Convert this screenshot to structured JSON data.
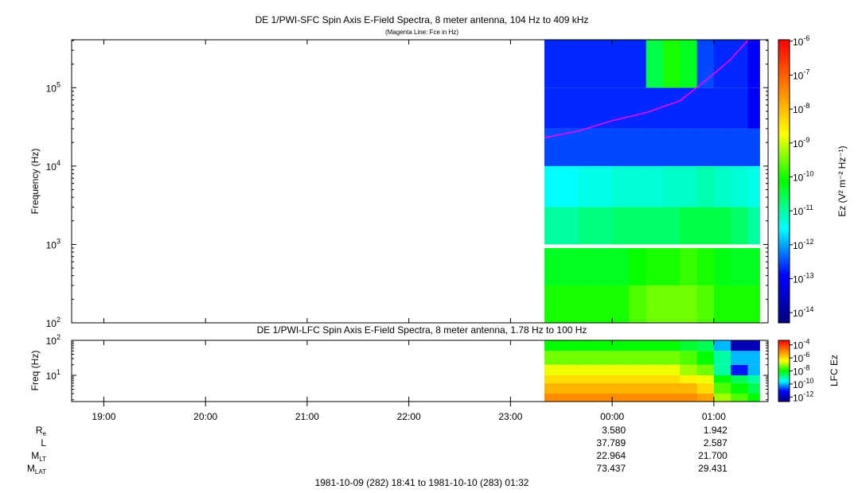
{
  "chart_data": [
    {
      "type": "spectrogram",
      "title": "DE 1/PWI-SFC  Spin Axis E-Field Spectra, 8 meter antenna, 104 Hz to 409 kHz",
      "subtitle": "(Magenta Line: Fce in Hz)",
      "ylabel": "Frequency (Hz)",
      "ylog": true,
      "ylim": [
        100,
        409000
      ],
      "yticks": [
        {
          "value": 100,
          "label": "10",
          "exponent": "2"
        },
        {
          "value": 1000,
          "label": "10",
          "exponent": "3"
        },
        {
          "value": 10000,
          "label": "10",
          "exponent": "4"
        },
        {
          "value": 100000,
          "label": "10",
          "exponent": "5"
        }
      ],
      "xlim": [
        "1981-10-09 18:41",
        "1981-10-10 01:32"
      ],
      "x_edges": [
        "1981-10-09 23:20",
        "1981-10-09 23:30",
        "1981-10-09 23:40",
        "1981-10-09 23:50",
        "1981-10-10 00:00",
        "1981-10-10 00:10",
        "1981-10-10 00:20",
        "1981-10-10 00:30",
        "1981-10-10 00:40",
        "1981-10-10 00:50",
        "1981-10-10 01:00",
        "1981-10-10 01:10",
        "1981-10-10 01:20",
        "1981-10-10 01:27"
      ],
      "y_bins": [
        [
          100,
          300
        ],
        [
          300,
          900
        ],
        [
          1000,
          3000
        ],
        [
          3000,
          10000
        ],
        [
          10000,
          30000
        ],
        [
          30000,
          100000
        ],
        [
          100000,
          409000
        ]
      ],
      "z": [
        [
          1e-10,
          1e-10,
          1e-10,
          1e-10,
          1e-10,
          2e-10,
          3e-10,
          3e-10,
          3e-10,
          2e-10,
          1e-10,
          1e-10,
          1e-10
        ],
        [
          5e-11,
          5e-11,
          5e-11,
          5e-11,
          5e-11,
          8e-11,
          1e-10,
          1e-10,
          1.5e-10,
          1e-10,
          6e-11,
          5e-11,
          5e-11
        ],
        [
          1e-11,
          1e-11,
          1.5e-11,
          1.5e-11,
          2e-11,
          2e-11,
          2e-11,
          2e-11,
          3e-11,
          3e-11,
          3e-11,
          2e-11,
          1e-11
        ],
        [
          3e-12,
          3e-12,
          4e-12,
          4e-12,
          5e-12,
          5e-12,
          5e-12,
          6e-12,
          6e-12,
          8e-12,
          6e-12,
          5e-12,
          4e-12
        ],
        [
          3e-13,
          3e-13,
          3e-13,
          3e-13,
          3e-13,
          3e-13,
          3e-13,
          3e-13,
          3e-13,
          3e-13,
          3e-13,
          3e-13,
          3e-13
        ],
        [
          2e-13,
          2e-13,
          2e-13,
          2e-13,
          2e-13,
          2e-13,
          2e-13,
          2e-13,
          2e-13,
          2e-13,
          2e-13,
          2e-13,
          1e-13
        ],
        [
          2e-13,
          2e-13,
          2e-13,
          2e-13,
          2e-13,
          2e-13,
          3e-11,
          1e-10,
          5e-11,
          3e-13,
          2e-13,
          2e-13,
          1e-13
        ]
      ],
      "overlay": {
        "color": "#ff00ff",
        "x": [
          "1981-10-09 23:20",
          "1981-10-09 23:40",
          "1981-10-10 00:00",
          "1981-10-10 00:20",
          "1981-10-10 00:40",
          "1981-10-10 01:00",
          "1981-10-10 01:10",
          "1981-10-10 01:20"
        ],
        "values": [
          23000,
          28000,
          38000,
          48000,
          68000,
          150000,
          230000,
          400000
        ]
      },
      "colorbar": {
        "label": "Ez (V² m⁻² Hz⁻¹)",
        "zlog": true,
        "zlim": [
          5e-15,
          1.1e-06
        ],
        "zticks": [
          {
            "value": 1e-06,
            "label": "10",
            "exponent": "-6"
          },
          {
            "value": 1e-07,
            "label": "10",
            "exponent": "-7"
          },
          {
            "value": 1e-08,
            "label": "10",
            "exponent": "-8"
          },
          {
            "value": 1e-09,
            "label": "10",
            "exponent": "-9"
          },
          {
            "value": 1e-10,
            "label": "10",
            "exponent": "-10"
          },
          {
            "value": 1e-11,
            "label": "10",
            "exponent": "-11"
          },
          {
            "value": 1e-12,
            "label": "10",
            "exponent": "-12"
          },
          {
            "value": 1e-13,
            "label": "10",
            "exponent": "-13"
          },
          {
            "value": 1e-14,
            "label": "10",
            "exponent": "-14"
          }
        ],
        "colormap": [
          "#00007f",
          "#0000ff",
          "#00ffff",
          "#00ff00",
          "#ffff00",
          "#ff7f00",
          "#ff0000"
        ]
      }
    },
    {
      "type": "spectrogram",
      "title": "DE 1/PWI-LFC  Spin Axis E-Field Spectra, 8 meter antenna, 1.78 Hz to 100 Hz",
      "ylabel": "Freq (Hz)",
      "ylog": true,
      "ylim": [
        1.78,
        100
      ],
      "yticks": [
        {
          "value": 10,
          "label": "10",
          "exponent": "1"
        },
        {
          "value": 100,
          "label": "10",
          "exponent": "2"
        }
      ],
      "xlim": [
        "1981-10-09 18:41",
        "1981-10-10 01:32"
      ],
      "xticks": [
        {
          "value": "1981-10-09 19:00",
          "label": "19:00"
        },
        {
          "value": "1981-10-09 20:00",
          "label": "20:00"
        },
        {
          "value": "1981-10-09 21:00",
          "label": "21:00"
        },
        {
          "value": "1981-10-09 22:00",
          "label": "22:00"
        },
        {
          "value": "1981-10-09 23:00",
          "label": "23:00"
        },
        {
          "value": "1981-10-10 00:00",
          "label": "00:00"
        },
        {
          "value": "1981-10-10 01:00",
          "label": "01:00"
        }
      ],
      "x_edges": [
        "1981-10-09 23:20",
        "1981-10-09 23:30",
        "1981-10-09 23:40",
        "1981-10-09 23:50",
        "1981-10-10 00:00",
        "1981-10-10 00:10",
        "1981-10-10 00:20",
        "1981-10-10 00:30",
        "1981-10-10 00:40",
        "1981-10-10 00:50",
        "1981-10-10 01:00",
        "1981-10-10 01:10",
        "1981-10-10 01:20",
        "1981-10-10 01:27"
      ],
      "y_bins": [
        [
          1.78,
          3
        ],
        [
          3,
          6
        ],
        [
          6,
          10
        ],
        [
          10,
          20
        ],
        [
          20,
          50
        ],
        [
          50,
          100
        ]
      ],
      "z": [
        [
          1e-05,
          1e-05,
          1e-05,
          1e-05,
          1e-05,
          1e-05,
          1e-05,
          1e-05,
          1e-05,
          5e-06,
          1e-07,
          3e-08,
          1e-08
        ],
        [
          3e-06,
          3e-06,
          3e-06,
          3e-06,
          3e-06,
          3e-06,
          3e-06,
          3e-06,
          3e-06,
          1e-06,
          3e-08,
          1e-08,
          3e-09
        ],
        [
          1e-06,
          1e-06,
          1e-06,
          1e-06,
          1e-06,
          1e-06,
          1e-06,
          1e-06,
          5e-07,
          3e-07,
          1e-08,
          3e-09,
          1e-09
        ],
        [
          3e-07,
          3e-07,
          3e-07,
          3e-07,
          3e-07,
          3e-07,
          3e-07,
          3e-07,
          1e-07,
          5e-08,
          1e-09,
          1e-11,
          1e-10
        ],
        [
          5e-08,
          5e-08,
          5e-08,
          5e-08,
          5e-08,
          5e-08,
          5e-08,
          5e-08,
          3e-08,
          1e-08,
          1e-09,
          1e-10,
          1e-10
        ],
        [
          1e-08,
          1e-08,
          1e-08,
          1e-08,
          1e-08,
          1e-08,
          1e-08,
          1e-08,
          5e-09,
          3e-09,
          1e-10,
          1e-12,
          1e-12
        ]
      ],
      "colorbar": {
        "label": "LFC Ez",
        "zlog": true,
        "zlim": [
          2e-13,
          0.0005
        ],
        "zticks": [
          {
            "value": 0.0001,
            "label": "10",
            "exponent": "-4"
          },
          {
            "value": 1e-06,
            "label": "10",
            "exponent": "-6"
          },
          {
            "value": 1e-08,
            "label": "10",
            "exponent": "-8"
          },
          {
            "value": 1e-10,
            "label": "10",
            "exponent": "-10"
          },
          {
            "value": 1e-12,
            "label": "10",
            "exponent": "-12"
          }
        ],
        "colormap": [
          "#00007f",
          "#0000ff",
          "#00ffff",
          "#00ff00",
          "#ffff00",
          "#ff7f00",
          "#ff0000"
        ]
      }
    }
  ],
  "ephemeris": {
    "x": [
      "1981-10-10 00:00",
      "1981-10-10 01:00"
    ],
    "rows": [
      {
        "label": "R",
        "subscript": "e",
        "values": [
          "3.580",
          "1.942"
        ]
      },
      {
        "label": "L",
        "values": [
          "37.789",
          "2.587"
        ]
      },
      {
        "label": "M",
        "subscript": "LT",
        "values": [
          "22.964",
          "21.700"
        ]
      },
      {
        "label": "M",
        "subscript": "LAT",
        "values": [
          "73.437",
          "29.431"
        ]
      }
    ]
  },
  "footer": "1981-10-09 (282) 18:41 to 1981-10-10 (283) 01:32"
}
